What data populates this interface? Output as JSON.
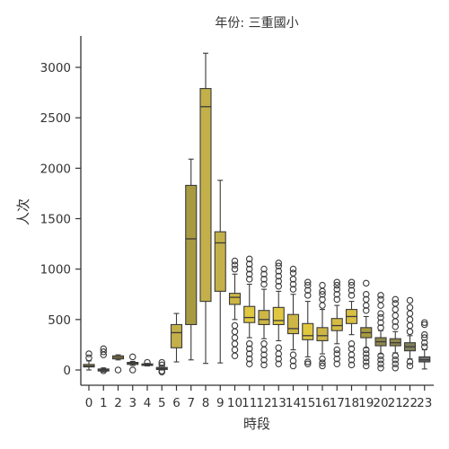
{
  "chart_data": {
    "type": "box",
    "title": "年份: 三重國小",
    "xlabel": "時段",
    "ylabel": "人次",
    "ylim": [
      -150,
      3300
    ],
    "yticks": [
      0,
      500,
      1000,
      1500,
      2000,
      2500,
      3000
    ],
    "grid": false,
    "legend": "none",
    "categories": [
      "0",
      "1",
      "2",
      "3",
      "4",
      "5",
      "6",
      "7",
      "8",
      "9",
      "10",
      "11",
      "12",
      "13",
      "14",
      "15",
      "16",
      "17",
      "18",
      "19",
      "20",
      "21",
      "22",
      "23"
    ],
    "boxes": [
      {
        "cat": "0",
        "color": "#c4b04a",
        "q1": 30,
        "median": 40,
        "q3": 55,
        "wlo": 0,
        "whi": 90,
        "outliers": [
          120,
          160
        ]
      },
      {
        "cat": "1",
        "color": "#c4b04a",
        "q1": -10,
        "median": 0,
        "q3": 10,
        "wlo": -20,
        "whi": 20,
        "outliers": [
          -8,
          150,
          180,
          210
        ]
      },
      {
        "cat": "2",
        "color": "#c4b04a",
        "q1": 110,
        "median": 125,
        "q3": 140,
        "wlo": 100,
        "whi": 150,
        "outliers": [
          0
        ]
      },
      {
        "cat": "3",
        "color": "#c4b04a",
        "q1": 55,
        "median": 65,
        "q3": 75,
        "wlo": 45,
        "whi": 85,
        "outliers": [
          0,
          130
        ]
      },
      {
        "cat": "4",
        "color": "#c4b04a",
        "q1": 45,
        "median": 52,
        "q3": 60,
        "wlo": 40,
        "whi": 65,
        "outliers": [
          75
        ]
      },
      {
        "cat": "5",
        "color": "#c4b04a",
        "q1": 5,
        "median": 15,
        "q3": 25,
        "wlo": 0,
        "whi": 40,
        "outliers": [
          -20,
          -10,
          50,
          75
        ]
      },
      {
        "cat": "6",
        "color": "#c4b04a",
        "q1": 220,
        "median": 370,
        "q3": 450,
        "wlo": 80,
        "whi": 560,
        "outliers": []
      },
      {
        "cat": "7",
        "color": "#a89a40",
        "q1": 450,
        "median": 1300,
        "q3": 1830,
        "wlo": 100,
        "whi": 2090,
        "outliers": []
      },
      {
        "cat": "8",
        "color": "#c4b04a",
        "q1": 680,
        "median": 2610,
        "q3": 2790,
        "wlo": 65,
        "whi": 3140,
        "outliers": []
      },
      {
        "cat": "9",
        "color": "#c4b04a",
        "q1": 780,
        "median": 1260,
        "q3": 1370,
        "wlo": 70,
        "whi": 1880,
        "outliers": []
      },
      {
        "cat": "10",
        "color": "#cdb646",
        "q1": 650,
        "median": 720,
        "q3": 760,
        "wlo": 500,
        "whi": 950,
        "outliers": [
          140,
          200,
          260,
          320,
          380,
          440,
          1000,
          1040,
          1080
        ]
      },
      {
        "cat": "11",
        "color": "#e0c740",
        "q1": 470,
        "median": 520,
        "q3": 630,
        "wlo": 320,
        "whi": 850,
        "outliers": [
          60,
          110,
          160,
          210,
          260,
          900,
          950,
          1000,
          1050,
          1100
        ]
      },
      {
        "cat": "12",
        "color": "#cdb646",
        "q1": 450,
        "median": 500,
        "q3": 590,
        "wlo": 310,
        "whi": 800,
        "outliers": [
          50,
          100,
          150,
          200,
          260,
          850,
          900,
          950,
          1000
        ]
      },
      {
        "cat": "13",
        "color": "#e0c740",
        "q1": 450,
        "median": 490,
        "q3": 620,
        "wlo": 290,
        "whi": 780,
        "outliers": [
          60,
          110,
          160,
          220,
          830,
          880,
          930,
          980,
          1030,
          1060
        ]
      },
      {
        "cat": "14",
        "color": "#cdb646",
        "q1": 360,
        "median": 410,
        "q3": 550,
        "wlo": 200,
        "whi": 750,
        "outliers": [
          40,
          90,
          150,
          800,
          850,
          900,
          960,
          1000
        ]
      },
      {
        "cat": "15",
        "color": "#e0c740",
        "q1": 300,
        "median": 340,
        "q3": 460,
        "wlo": 130,
        "whi": 680,
        "outliers": [
          60,
          80,
          740,
          790,
          840,
          870
        ]
      },
      {
        "cat": "16",
        "color": "#cdb646",
        "q1": 290,
        "median": 340,
        "q3": 420,
        "wlo": 160,
        "whi": 600,
        "outliers": [
          40,
          70,
          110,
          640,
          700,
          750,
          780,
          840
        ]
      },
      {
        "cat": "17",
        "color": "#d4bc44",
        "q1": 390,
        "median": 440,
        "q3": 510,
        "wlo": 260,
        "whi": 640,
        "outliers": [
          60,
          110,
          160,
          200,
          700,
          750,
          800,
          840,
          870
        ]
      },
      {
        "cat": "18",
        "color": "#d9bf44",
        "q1": 460,
        "median": 530,
        "q3": 600,
        "wlo": 350,
        "whi": 680,
        "outliers": [
          50,
          100,
          150,
          210,
          260,
          740,
          790,
          840,
          870
        ]
      },
      {
        "cat": "19",
        "color": "#a89a40",
        "q1": 320,
        "median": 370,
        "q3": 420,
        "wlo": 220,
        "whi": 530,
        "outliers": [
          40,
          80,
          120,
          160,
          200,
          590,
          640,
          700,
          750,
          860
        ]
      },
      {
        "cat": "20",
        "color": "#8e864c",
        "q1": 240,
        "median": 280,
        "q3": 320,
        "wlo": 160,
        "whi": 390,
        "outliers": [
          20,
          60,
          100,
          140,
          420,
          470,
          520,
          560,
          640,
          700,
          740
        ]
      },
      {
        "cat": "21",
        "color": "#8e864c",
        "q1": 240,
        "median": 270,
        "q3": 310,
        "wlo": 170,
        "whi": 380,
        "outliers": [
          20,
          60,
          100,
          140,
          430,
          480,
          540,
          600,
          660,
          700
        ]
      },
      {
        "cat": "22",
        "color": "#7f7f5a",
        "q1": 190,
        "median": 230,
        "q3": 270,
        "wlo": 110,
        "whi": 340,
        "outliers": [
          40,
          80,
          380,
          440,
          500,
          560,
          620,
          690
        ]
      },
      {
        "cat": "23",
        "color": "#6f6f6f",
        "q1": 80,
        "median": 100,
        "q3": 130,
        "wlo": 10,
        "whi": 200,
        "outliers": [
          230,
          270,
          320,
          350,
          450,
          470
        ]
      }
    ]
  }
}
